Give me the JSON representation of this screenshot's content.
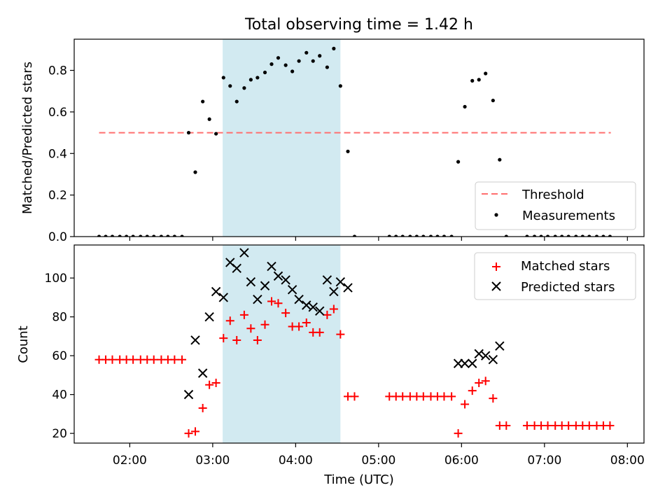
{
  "figure": {
    "title": "Total observing time = 1.42 h",
    "xlabel": "Time (UTC)"
  },
  "colors": {
    "shade": "#add8e6",
    "threshold": "#ff6f6f",
    "measurement": "#000000",
    "matched": "#ff0000",
    "predicted": "#000000"
  },
  "chart_data": [
    {
      "type": "scatter",
      "panel": "top",
      "ylabel": "Matched/Predicted stars",
      "x_unit": "hours UTC",
      "xlim": [
        1.33,
        8.2
      ],
      "ylim": [
        0,
        0.95
      ],
      "yticks": [
        0.0,
        0.2,
        0.4,
        0.6,
        0.8
      ],
      "ytick_labels": [
        "0.0",
        "0.2",
        "0.4",
        "0.6",
        "0.8"
      ],
      "shaded_interval": [
        3.12,
        4.54
      ],
      "legend_position": "lower right",
      "threshold": {
        "name": "Threshold",
        "y": 0.5,
        "x_range": [
          1.63,
          7.8
        ],
        "style": "dashed"
      },
      "series": [
        {
          "name": "Measurements",
          "marker": "dot",
          "x": [
            1.63,
            1.71,
            1.79,
            1.88,
            1.96,
            2.04,
            2.13,
            2.21,
            2.29,
            2.38,
            2.46,
            2.54,
            2.63,
            2.71,
            2.79,
            2.88,
            2.96,
            3.04,
            3.13,
            3.21,
            3.29,
            3.38,
            3.46,
            3.54,
            3.63,
            3.71,
            3.79,
            3.88,
            3.96,
            4.04,
            4.13,
            4.21,
            4.29,
            4.38,
            4.46,
            4.54,
            4.63,
            4.71,
            5.13,
            5.21,
            5.29,
            5.38,
            5.46,
            5.54,
            5.63,
            5.71,
            5.79,
            5.88,
            5.96,
            6.04,
            6.13,
            6.21,
            6.29,
            6.38,
            6.46,
            6.54,
            6.79,
            6.88,
            6.96,
            7.04,
            7.13,
            7.21,
            7.29,
            7.38,
            7.46,
            7.54,
            7.63,
            7.71,
            7.79
          ],
          "y": [
            0,
            0,
            0,
            0,
            0,
            0,
            0,
            0,
            0,
            0,
            0,
            0,
            0,
            0.5,
            0.31,
            0.65,
            0.565,
            0.495,
            0.765,
            0.725,
            0.65,
            0.715,
            0.755,
            0.765,
            0.79,
            0.83,
            0.86,
            0.825,
            0.795,
            0.845,
            0.885,
            0.845,
            0.87,
            0.815,
            0.905,
            0.725,
            0.41,
            0,
            0,
            0,
            0,
            0,
            0,
            0,
            0,
            0,
            0,
            0,
            0.36,
            0.625,
            0.75,
            0.755,
            0.785,
            0.655,
            0.37,
            0,
            0,
            0,
            0,
            0,
            0,
            0,
            0,
            0,
            0,
            0,
            0,
            0,
            0
          ]
        }
      ]
    },
    {
      "type": "scatter",
      "panel": "bottom",
      "ylabel": "Count",
      "xlabel": "Time (UTC)",
      "x_unit": "hours UTC",
      "xlim": [
        1.33,
        8.2
      ],
      "ylim": [
        15,
        117
      ],
      "yticks": [
        20,
        40,
        60,
        80,
        100
      ],
      "ytick_labels": [
        "20",
        "40",
        "60",
        "80",
        "100"
      ],
      "xticks": [
        2,
        3,
        4,
        5,
        6,
        7,
        8
      ],
      "xtick_labels": [
        "02:00",
        "03:00",
        "04:00",
        "05:00",
        "06:00",
        "07:00",
        "08:00"
      ],
      "shaded_interval": [
        3.12,
        4.54
      ],
      "legend_position": "upper right",
      "series": [
        {
          "name": "Matched stars",
          "marker": "plus",
          "x": [
            1.63,
            1.71,
            1.79,
            1.88,
            1.96,
            2.04,
            2.13,
            2.21,
            2.29,
            2.38,
            2.46,
            2.54,
            2.63,
            2.71,
            2.79,
            2.88,
            2.96,
            3.04,
            3.13,
            3.21,
            3.29,
            3.38,
            3.46,
            3.54,
            3.63,
            3.71,
            3.79,
            3.88,
            3.96,
            4.04,
            4.13,
            4.21,
            4.29,
            4.38,
            4.46,
            4.54,
            4.63,
            4.71,
            5.13,
            5.21,
            5.29,
            5.38,
            5.46,
            5.54,
            5.63,
            5.71,
            5.79,
            5.88,
            5.96,
            6.04,
            6.13,
            6.21,
            6.29,
            6.38,
            6.46,
            6.54,
            6.79,
            6.88,
            6.96,
            7.04,
            7.13,
            7.21,
            7.29,
            7.38,
            7.46,
            7.54,
            7.63,
            7.71,
            7.79
          ],
          "y": [
            58,
            58,
            58,
            58,
            58,
            58,
            58,
            58,
            58,
            58,
            58,
            58,
            58,
            20,
            21,
            33,
            45,
            46,
            69,
            78,
            68,
            81,
            74,
            68,
            76,
            88,
            87,
            82,
            75,
            75,
            77,
            72,
            72,
            81,
            84,
            71,
            39,
            39,
            39,
            39,
            39,
            39,
            39,
            39,
            39,
            39,
            39,
            39,
            20,
            35,
            42,
            46,
            47,
            38,
            24,
            24,
            24,
            24,
            24,
            24,
            24,
            24,
            24,
            24,
            24,
            24,
            24,
            24,
            24
          ]
        },
        {
          "name": "Predicted stars",
          "marker": "x",
          "x": [
            2.71,
            2.79,
            2.88,
            2.96,
            3.04,
            3.13,
            3.21,
            3.29,
            3.38,
            3.46,
            3.54,
            3.63,
            3.71,
            3.79,
            3.88,
            3.96,
            4.04,
            4.13,
            4.21,
            4.29,
            4.38,
            4.46,
            4.54,
            4.63,
            5.96,
            6.04,
            6.13,
            6.21,
            6.29,
            6.38,
            6.46
          ],
          "y": [
            40,
            68,
            51,
            80,
            93,
            90,
            108,
            105,
            113,
            98,
            89,
            96,
            106,
            101,
            99,
            94,
            89,
            86,
            85,
            83,
            99,
            93,
            98,
            95,
            56,
            56,
            56,
            61,
            60,
            58,
            65
          ]
        }
      ]
    }
  ]
}
